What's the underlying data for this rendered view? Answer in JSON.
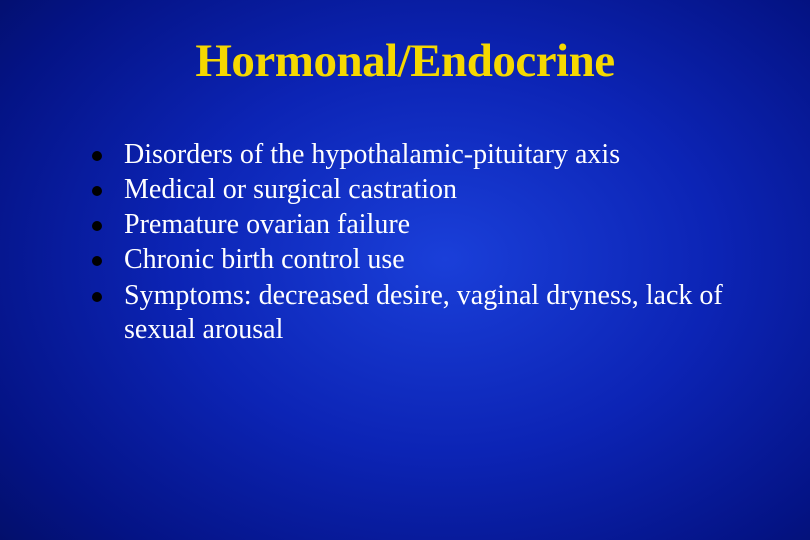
{
  "slide": {
    "title": "Hormonal/Endocrine",
    "title_color": "#f5d800",
    "title_fontsize": 47,
    "title_fontweight": "bold",
    "background_gradient": {
      "type": "radial",
      "stops": [
        "#1a3fd9",
        "#0c24b5",
        "#041385",
        "#010a4a",
        "#000530"
      ]
    },
    "bullets": [
      "Disorders of the hypothalamic-pituitary axis",
      "Medical or surgical castration",
      "Premature ovarian failure",
      "Chronic birth control use",
      "Symptoms: decreased desire, vaginal dryness, lack of sexual arousal"
    ],
    "bullet_color": "#ffffff",
    "bullet_fontsize": 28,
    "bullet_dot_color": "#000000",
    "bullet_dot_size": 10,
    "font_family": "Times New Roman"
  }
}
